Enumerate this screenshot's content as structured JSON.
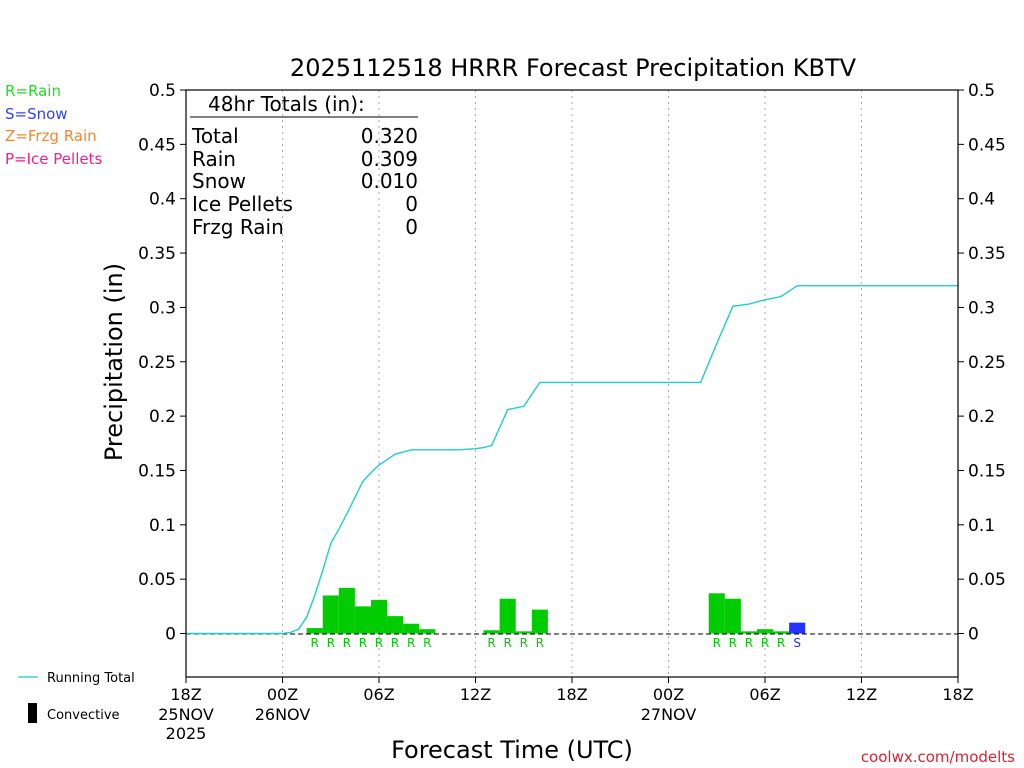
{
  "chart_data": {
    "type": "bar",
    "title": "2025112518 HRRR Forecast Precipitation KBTV",
    "ylabel": "Precipitation (in)",
    "xlabel": "Forecast Time (UTC)",
    "ylim": [
      -0.04,
      0.5
    ],
    "xlim_hours": [
      0,
      48
    ],
    "yticks": [
      "0.5",
      "0.45",
      "0.4",
      "0.35",
      "0.3",
      "0.25",
      "0.2",
      "0.15",
      "0.1",
      "0.05",
      "0"
    ],
    "yticks_values": [
      0.5,
      0.45,
      0.4,
      0.35,
      0.3,
      0.25,
      0.2,
      0.15,
      0.1,
      0.05,
      0
    ],
    "xticks": [
      {
        "hour": 0,
        "label": "18Z",
        "date": "25NOV",
        "year": "2025"
      },
      {
        "hour": 6,
        "label": "00Z",
        "date": "26NOV",
        "year": ""
      },
      {
        "hour": 12,
        "label": "06Z",
        "date": "",
        "year": ""
      },
      {
        "hour": 18,
        "label": "12Z",
        "date": "",
        "year": ""
      },
      {
        "hour": 24,
        "label": "18Z",
        "date": "",
        "year": ""
      },
      {
        "hour": 30,
        "label": "00Z",
        "date": "27NOV",
        "year": ""
      },
      {
        "hour": 36,
        "label": "06Z",
        "date": "",
        "year": ""
      },
      {
        "hour": 42,
        "label": "12Z",
        "date": "",
        "year": ""
      },
      {
        "hour": 48,
        "label": "18Z",
        "date": "",
        "year": ""
      }
    ],
    "grid": "vertical dotted",
    "series": [
      {
        "name": "Rain",
        "type": "bar",
        "color": "#00cc00",
        "points": [
          {
            "hour": 8,
            "value": 0.005,
            "label": "R"
          },
          {
            "hour": 9,
            "value": 0.035,
            "label": "R"
          },
          {
            "hour": 10,
            "value": 0.042,
            "label": "R"
          },
          {
            "hour": 11,
            "value": 0.025,
            "label": "R"
          },
          {
            "hour": 12,
            "value": 0.031,
            "label": "R"
          },
          {
            "hour": 13,
            "value": 0.016,
            "label": "R"
          },
          {
            "hour": 14,
            "value": 0.009,
            "label": "R"
          },
          {
            "hour": 15,
            "value": 0.004,
            "label": "R"
          },
          {
            "hour": 19,
            "value": 0.003,
            "label": "R"
          },
          {
            "hour": 20,
            "value": 0.032,
            "label": "R"
          },
          {
            "hour": 21,
            "value": 0.002,
            "label": "R"
          },
          {
            "hour": 22,
            "value": 0.022,
            "label": "R"
          },
          {
            "hour": 33,
            "value": 0.037,
            "label": "R"
          },
          {
            "hour": 34,
            "value": 0.032,
            "label": "R"
          },
          {
            "hour": 35,
            "value": 0.002,
            "label": "R"
          },
          {
            "hour": 36,
            "value": 0.004,
            "label": "R"
          },
          {
            "hour": 37,
            "value": 0.002,
            "label": "R"
          }
        ]
      },
      {
        "name": "Snow",
        "type": "bar",
        "color": "#2233ff",
        "points": [
          {
            "hour": 38,
            "value": 0.01,
            "label": "S"
          }
        ]
      },
      {
        "name": "Running Total",
        "type": "line",
        "color": "#22cccc",
        "x": [
          0,
          6,
          6.5,
          7,
          7.5,
          8,
          8.5,
          9,
          9.5,
          10,
          10.5,
          11,
          11.5,
          12,
          13,
          14,
          15,
          16,
          17,
          18,
          18.5,
          19,
          20,
          21,
          22,
          24,
          28,
          29,
          30,
          31,
          32,
          33,
          34,
          35,
          36,
          37,
          38,
          39,
          42,
          48
        ],
        "values": [
          0,
          0,
          0.001,
          0.004,
          0.015,
          0.035,
          0.058,
          0.083,
          0.096,
          0.11,
          0.125,
          0.14,
          0.148,
          0.155,
          0.165,
          0.169,
          0.169,
          0.169,
          0.169,
          0.17,
          0.171,
          0.173,
          0.206,
          0.209,
          0.231,
          0.231,
          0.231,
          0.231,
          0.231,
          0.231,
          0.231,
          0.267,
          0.301,
          0.303,
          0.307,
          0.31,
          0.32,
          0.32,
          0.32,
          0.32
        ]
      }
    ],
    "legend_left": [
      {
        "text": "R=Rain",
        "color": "#22dd22"
      },
      {
        "text": "S=Snow",
        "color": "#3344ee"
      },
      {
        "text": "Z=Frzg Rain",
        "color": "#ee8833"
      },
      {
        "text": "P=Ice Pellets",
        "color": "#ee2288"
      }
    ],
    "legend_bottom": {
      "running_total": "Running Total",
      "convective": "Convective"
    },
    "totals_box": {
      "heading": "48hr Totals (in):",
      "rows": [
        {
          "label": "Total",
          "value": "0.320"
        },
        {
          "label": "Rain",
          "value": "0.309"
        },
        {
          "label": "Snow",
          "value": "0.010"
        },
        {
          "label": "Ice Pellets",
          "value": "0"
        },
        {
          "label": "Frzg Rain",
          "value": "0"
        }
      ]
    },
    "footer": "coolwx.com/modelts"
  }
}
